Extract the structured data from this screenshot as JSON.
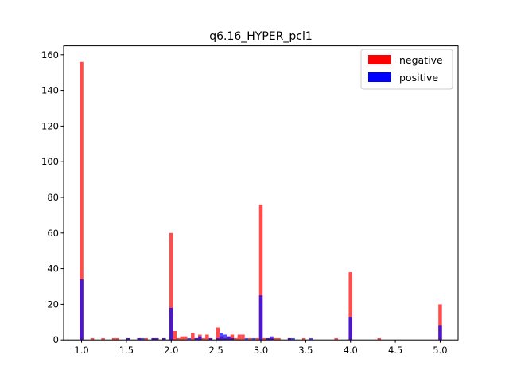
{
  "chart_data": {
    "type": "bar",
    "title": "q6.16_HYPER_pcl1",
    "xlabel": "",
    "ylabel": "",
    "xlim": [
      0.8,
      5.2
    ],
    "ylim": [
      0,
      165
    ],
    "x_ticks": [
      1.0,
      1.5,
      2.0,
      2.5,
      3.0,
      3.5,
      4.0,
      4.5,
      5.0
    ],
    "x_tick_labels": [
      "1.0",
      "1.5",
      "2.0",
      "2.5",
      "3.0",
      "3.5",
      "4.0",
      "4.5",
      "5.0"
    ],
    "y_ticks": [
      0,
      20,
      40,
      60,
      80,
      100,
      120,
      140,
      160
    ],
    "y_tick_labels": [
      "0",
      "20",
      "40",
      "60",
      "80",
      "100",
      "120",
      "140",
      "160"
    ],
    "bin_width": 0.04,
    "grid": false,
    "legend_position": "top-right",
    "series": [
      {
        "name": "negative",
        "color": "#ff0000",
        "x": [
          1.0,
          1.12,
          1.24,
          1.36,
          1.4,
          1.52,
          1.64,
          1.72,
          1.8,
          1.84,
          1.92,
          2.0,
          2.04,
          2.08,
          2.12,
          2.16,
          2.24,
          2.28,
          2.32,
          2.36,
          2.4,
          2.44,
          2.52,
          2.56,
          2.6,
          2.64,
          2.68,
          2.72,
          2.76,
          2.8,
          2.88,
          2.96,
          3.0,
          3.04,
          3.08,
          3.12,
          3.16,
          3.2,
          3.32,
          3.48,
          3.84,
          4.0,
          4.32,
          5.0
        ],
        "values": [
          156,
          1,
          1,
          1,
          1,
          1,
          1,
          1,
          1,
          1,
          1,
          60,
          5,
          1,
          2,
          2,
          4,
          1,
          3,
          1,
          3,
          1,
          7,
          2,
          1,
          2,
          3,
          1,
          3,
          3,
          1,
          1,
          76,
          1,
          1,
          1,
          1,
          1,
          1,
          1,
          1,
          38,
          1,
          20
        ]
      },
      {
        "name": "positive",
        "color": "#0000ff",
        "x": [
          1.0,
          1.52,
          1.64,
          1.68,
          1.8,
          1.84,
          1.92,
          2.0,
          2.2,
          2.28,
          2.32,
          2.44,
          2.52,
          2.56,
          2.6,
          2.64,
          2.68,
          2.84,
          2.92,
          3.0,
          3.08,
          3.12,
          3.32,
          3.36,
          3.56,
          4.0,
          5.0
        ],
        "values": [
          34,
          1,
          1,
          1,
          1,
          1,
          1,
          18,
          1,
          1,
          2,
          1,
          1,
          4,
          3,
          2,
          1,
          1,
          1,
          25,
          1,
          2,
          1,
          1,
          1,
          13,
          8
        ]
      }
    ]
  }
}
